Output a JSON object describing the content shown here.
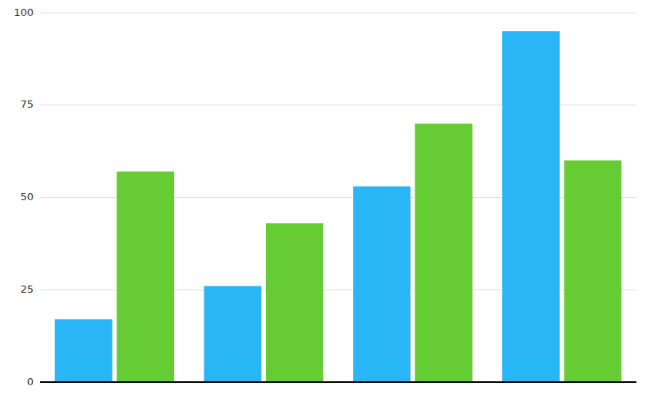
{
  "chart_data": {
    "type": "bar",
    "categories": [
      null,
      null,
      null,
      null
    ],
    "series": [
      {
        "color": "#29B6F6",
        "values": [
          17,
          26,
          53,
          95
        ]
      },
      {
        "color": "#66CC33",
        "values": [
          57,
          43,
          70,
          60
        ]
      }
    ],
    "ylim": [
      0,
      100
    ],
    "yticks": [
      0,
      25,
      50,
      75,
      100
    ],
    "grid": true,
    "tick_labels": "y"
  }
}
